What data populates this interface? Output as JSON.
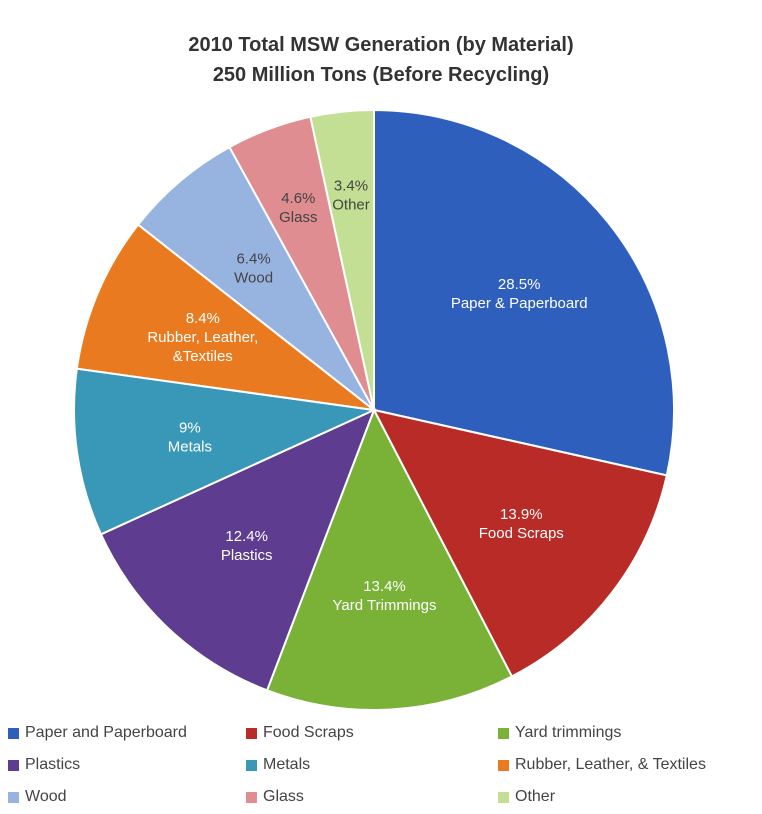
{
  "chart_data": {
    "type": "pie",
    "title": "2010 Total MSW Generation (by Material)",
    "subtitle": "250 Million Tons (Before Recycling)",
    "slices": [
      {
        "label": "Paper & Paperboard",
        "legend": "Paper and Paperboard",
        "value": 28.5,
        "value_label": "28.5%",
        "color": "#2e5fbd",
        "text_color": "#ffffff"
      },
      {
        "label": "Food Scraps",
        "legend": "Food Scraps",
        "value": 13.9,
        "value_label": "13.9%",
        "color": "#b92b26",
        "text_color": "#ffffff"
      },
      {
        "label": "Yard Trimmings",
        "legend": "Yard trimmings",
        "value": 13.4,
        "value_label": "13.4%",
        "color": "#79b236",
        "text_color": "#ffffff"
      },
      {
        "label": "Plastics",
        "legend": "Plastics",
        "value": 12.4,
        "value_label": "12.4%",
        "color": "#5e3c8f",
        "text_color": "#ffffff"
      },
      {
        "label": "Metals",
        "legend": "Metals",
        "value": 9,
        "value_label": "9%",
        "color": "#3997b8",
        "text_color": "#ffffff"
      },
      {
        "label": "Rubber, Leather, &Textiles",
        "legend": "Rubber, Leather, & Textiles",
        "value": 8.4,
        "value_label": "8.4%",
        "color": "#ea7a1f",
        "text_color": "#ffffff"
      },
      {
        "label": "Wood",
        "legend": "Wood",
        "value": 6.4,
        "value_label": "6.4%",
        "color": "#97b4e1",
        "text_color": "#444444"
      },
      {
        "label": "Glass",
        "legend": "Glass",
        "value": 4.6,
        "value_label": "4.6%",
        "color": "#df8d90",
        "text_color": "#444444"
      },
      {
        "label": "Other",
        "legend": "Other",
        "value": 3.4,
        "value_label": "3.4%",
        "color": "#c3df93",
        "text_color": "#444444"
      }
    ],
    "legend_position": "bottom"
  }
}
